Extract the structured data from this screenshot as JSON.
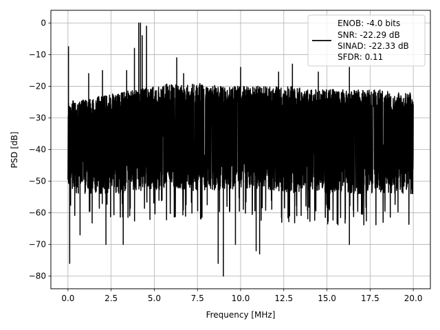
{
  "chart_data": {
    "type": "line",
    "title": "",
    "xlabel": "Frequency [MHz]",
    "ylabel": "PSD [dB]",
    "xlim": [
      -0.99,
      20.99
    ],
    "ylim": [
      -84.0,
      4.0
    ],
    "xticks": [
      0.0,
      2.5,
      5.0,
      7.5,
      10.0,
      12.5,
      15.0,
      17.5,
      20.0
    ],
    "xtick_labels": [
      "0.0",
      "2.5",
      "5.0",
      "7.5",
      "10.0",
      "12.5",
      "15.0",
      "17.5",
      "20.0"
    ],
    "yticks": [
      0,
      -10,
      -20,
      -30,
      -40,
      -50,
      -60,
      -70,
      -80
    ],
    "ytick_labels": [
      "0",
      "−10",
      "−20",
      "−30",
      "−40",
      "−50",
      "−60",
      "−70",
      "−80"
    ],
    "grid": true,
    "line_color": "#000000",
    "series": [
      {
        "name": "",
        "x_range": [
          0.0,
          20.0
        ],
        "envelope": {
          "x": [
            0.0,
            0.5,
            1.0,
            2.0,
            3.0,
            4.0,
            5.0,
            6.0,
            7.0,
            8.0,
            9.0,
            10.0,
            11.0,
            12.0,
            13.0,
            14.0,
            15.0,
            16.0,
            17.0,
            18.0,
            19.0,
            20.0
          ],
          "upper": [
            -24,
            -25,
            -24,
            -23,
            -22,
            -21,
            -20,
            -19,
            -19,
            -19,
            -20,
            -20,
            -20,
            -20,
            -20,
            -21,
            -21,
            -21,
            -21,
            -21,
            -22,
            -22
          ],
          "lower": [
            -52,
            -54,
            -54,
            -54,
            -54,
            -53,
            -53,
            -52,
            -53,
            -53,
            -53,
            -52,
            -53,
            -53,
            -54,
            -53,
            -54,
            -54,
            -54,
            -54,
            -54,
            -54
          ]
        },
        "peaks": [
          {
            "x": 0.03,
            "y": -7.5
          },
          {
            "x": 4.1,
            "y": 0.0
          },
          {
            "x": 4.2,
            "y": 0.0
          },
          {
            "x": 4.55,
            "y": -1.0
          },
          {
            "x": 3.85,
            "y": -8.0
          },
          {
            "x": 4.3,
            "y": -4.0
          },
          {
            "x": 1.2,
            "y": -16.0
          },
          {
            "x": 2.0,
            "y": -15.0
          },
          {
            "x": 3.4,
            "y": -15.0
          },
          {
            "x": 6.3,
            "y": -11.0
          },
          {
            "x": 10.0,
            "y": -14.0
          },
          {
            "x": 13.0,
            "y": -13.0
          },
          {
            "x": 16.3,
            "y": -14.0
          },
          {
            "x": 12.2,
            "y": -15.5
          },
          {
            "x": 14.5,
            "y": -15.5
          },
          {
            "x": 6.7,
            "y": -16.0
          }
        ],
        "dips": [
          {
            "x": 0.1,
            "y": -76.0
          },
          {
            "x": 0.7,
            "y": -67.0
          },
          {
            "x": 2.2,
            "y": -70.0
          },
          {
            "x": 3.2,
            "y": -70.0
          },
          {
            "x": 8.7,
            "y": -76.0
          },
          {
            "x": 9.0,
            "y": -80.0
          },
          {
            "x": 9.7,
            "y": -70.0
          },
          {
            "x": 10.9,
            "y": -72.0
          },
          {
            "x": 11.1,
            "y": -73.0
          },
          {
            "x": 16.3,
            "y": -70.0
          }
        ]
      }
    ],
    "legend": {
      "placement": "top-right",
      "lines": [
        "ENOB: -4.0 bits",
        "SNR: -22.29 dB",
        "SINAD: -22.33 dB",
        "SFDR: 0.11"
      ]
    }
  }
}
